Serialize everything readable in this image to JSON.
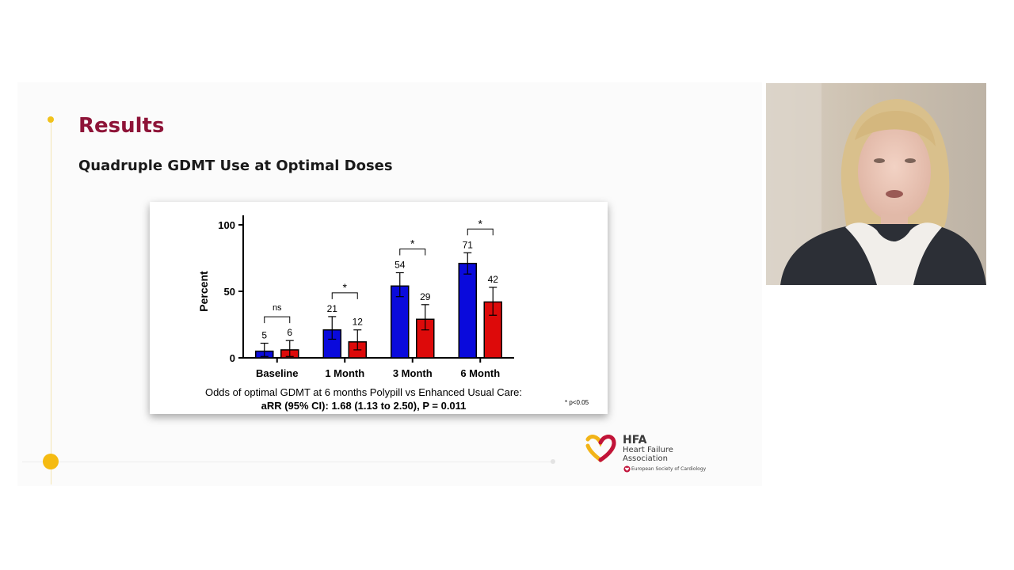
{
  "slide": {
    "title": "Results",
    "subtitle": "Quadruple GDMT Use at Optimal Doses"
  },
  "chart_data": {
    "type": "bar",
    "ylabel": "Percent",
    "xlabel": "",
    "ylim": [
      0,
      100
    ],
    "yticks": [
      0,
      50,
      100
    ],
    "grid": false,
    "categories": [
      "Baseline",
      "1 Month",
      "3 Month",
      "6 Month"
    ],
    "series": [
      {
        "color": "#0a0adc",
        "values": [
          5,
          21,
          54,
          71
        ],
        "err_low": [
          1,
          14,
          46,
          63
        ],
        "err_high": [
          11,
          31,
          64,
          79
        ]
      },
      {
        "color": "#dd0a0a",
        "values": [
          6,
          12,
          29,
          42
        ],
        "err_low": [
          1,
          6,
          21,
          32
        ],
        "err_high": [
          13,
          21,
          40,
          53
        ]
      }
    ],
    "data_labels": [
      [
        "5",
        "21",
        "54",
        "71"
      ],
      [
        "6",
        "12",
        "29",
        "42"
      ]
    ],
    "significance": [
      "ns",
      "*",
      "*",
      "*"
    ],
    "caption": "Odds of optimal GDMT at 6 months Polypill vs Enhanced Usual Care:",
    "caption_bold": "aRR (95% CI): 1.68 (1.13 to 2.50), P = 0.011",
    "footnote": "* p<0.05"
  },
  "logo": {
    "abbr": "HFA",
    "line1": "Heart Failure",
    "line2": "Association",
    "society": "European Society of Cardiology",
    "colors": {
      "gold": "#f2b418",
      "red": "#c1133a"
    }
  },
  "theme": {
    "title_color": "#8e1438",
    "accent_yellow": "#f5bb12"
  }
}
